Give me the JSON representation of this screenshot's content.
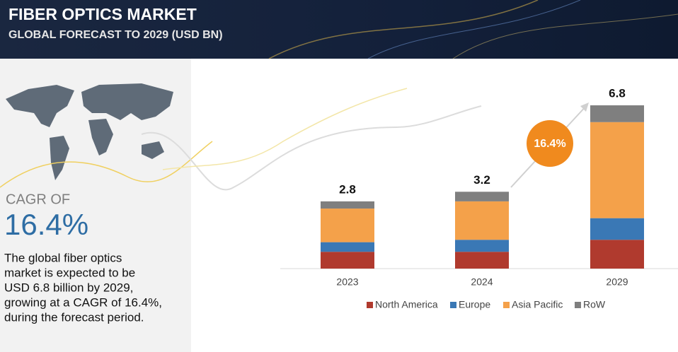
{
  "header": {
    "title": "FIBER OPTICS MARKET",
    "subtitle": "GLOBAL FORECAST TO 2029 (USD BN)"
  },
  "sidebar": {
    "cagr_label": "CAGR OF",
    "cagr_value": "16.4%",
    "description": [
      "The global fiber optics",
      "market is expected to be",
      "USD 6.8 billion by 2029,",
      "growing at a CAGR of 16.4%,",
      "during the forecast period."
    ]
  },
  "chart_data": {
    "type": "stacked_bar",
    "categories": [
      "2023",
      "2024",
      "2029"
    ],
    "series": [
      {
        "name": "North America",
        "color": "#b03a2e",
        "values": [
          0.7,
          0.7,
          1.2
        ]
      },
      {
        "name": "Europe",
        "color": "#3a78b5",
        "values": [
          0.4,
          0.5,
          0.9
        ]
      },
      {
        "name": "Asia Pacific",
        "color": "#f4a14a",
        "values": [
          1.4,
          1.6,
          4.0
        ]
      },
      {
        "name": "RoW",
        "color": "#7f7f7f",
        "values": [
          0.3,
          0.4,
          0.7
        ]
      }
    ],
    "totals": [
      2.8,
      3.2,
      6.8
    ],
    "annotation": "16.4%",
    "legend": "bottom"
  }
}
